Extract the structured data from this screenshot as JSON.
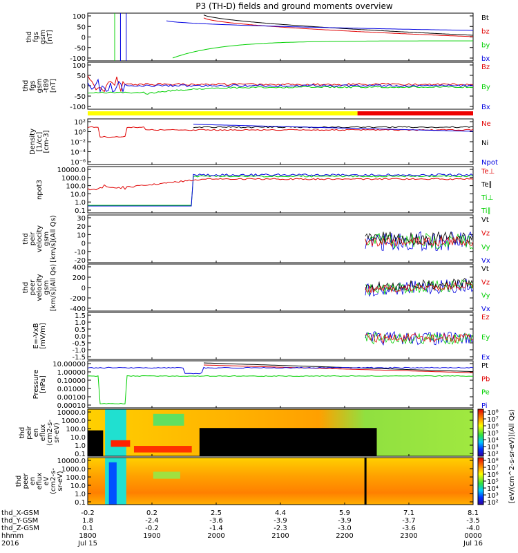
{
  "title": "P3 (TH-D) fields and ground moments overview",
  "colors": {
    "black": "#000000",
    "red": "#e00000",
    "green": "#00d000",
    "blue": "#0000e0",
    "yellow": "#ffff00",
    "barred": "#ee0000"
  },
  "chart_data": {
    "type": "line",
    "x_time_labels": [
      "1800",
      "1900",
      "2000",
      "2100",
      "2200",
      "2300",
      "0000"
    ],
    "x_dates": [
      "Jul 15",
      "",
      "",
      "",
      "",
      "",
      "Jul 16"
    ],
    "x_year": "2016",
    "x_rows": [
      {
        "label": "thd_X-GSM",
        "values": [
          "-0.2",
          "0.2",
          "2.5",
          "4.4",
          "5.9",
          "7.1",
          "8.1"
        ]
      },
      {
        "label": "thd_Y-GSM",
        "values": [
          "1.8",
          "-2.4",
          "-3.6",
          "-3.9",
          "-3.9",
          "-3.7",
          "-3.5"
        ]
      },
      {
        "label": "thd_Z-GSM",
        "values": [
          "0.1",
          "-0.2",
          "-1.4",
          "-2.3",
          "-3.0",
          "-3.6",
          "-4.0"
        ]
      },
      {
        "label": "hhmm",
        "values": [
          "1800",
          "1900",
          "2000",
          "2100",
          "2200",
          "2300",
          "0000"
        ]
      },
      {
        "label": "2016",
        "values": [
          "Jul 15",
          "",
          "",
          "",
          "",
          "",
          "Jul 16"
        ]
      }
    ],
    "panels": [
      {
        "id": "fgs",
        "ylabel": [
          "thd",
          "fgs",
          "gsm",
          "[nT]"
        ],
        "yticks": [
          "100",
          "50",
          "0",
          "-50",
          "-100"
        ],
        "legend": [
          {
            "name": "Bt",
            "color": "black"
          },
          {
            "name": "bz",
            "color": "red"
          },
          {
            "name": "by",
            "color": "green"
          },
          {
            "name": "bx",
            "color": "blue"
          }
        ]
      },
      {
        "id": "fgs_dsl",
        "ylabel": [
          "thd",
          "fgs",
          "gsm",
          "-t89",
          "[nT]"
        ],
        "yticks": [
          "100",
          "50",
          "0",
          "-50",
          "-100"
        ],
        "legend": [
          {
            "name": "Bz",
            "color": "red"
          },
          {
            "name": "By",
            "color": "green"
          },
          {
            "name": "Bx",
            "color": "blue"
          }
        ]
      },
      {
        "id": "density",
        "ylabel": [
          "Density",
          "[1/cc]",
          "[cm-3]"
        ],
        "yticks": [
          "10²",
          "10⁰",
          "10⁻²",
          "10⁻⁴",
          "10⁻⁶"
        ],
        "legend": [
          {
            "name": "Ne",
            "color": "red"
          },
          {
            "name": "Ni",
            "color": "black"
          },
          {
            "name": "Npot",
            "color": "blue"
          }
        ]
      },
      {
        "id": "temp",
        "ylabel": [
          "npot3"
        ],
        "yticks": [
          "10000.0",
          "1000.0",
          "100.0",
          "10.0",
          "1.0",
          "0.1"
        ],
        "legend": [
          {
            "name": "Te⊥",
            "color": "red"
          },
          {
            "name": "Te∥",
            "color": "black"
          },
          {
            "name": "Ti⊥",
            "color": "green"
          },
          {
            "name": "Ti∥",
            "color": "green"
          }
        ]
      },
      {
        "id": "vi",
        "ylabel": [
          "thd",
          "peir",
          "velocity",
          "gsm",
          "[km/s](All Qs)"
        ],
        "yticks": [
          "30",
          "20",
          "10",
          "0",
          "-10",
          "-20"
        ],
        "legend": [
          {
            "name": "Vt",
            "color": "black"
          },
          {
            "name": "Vz",
            "color": "red"
          },
          {
            "name": "Vy",
            "color": "green"
          },
          {
            "name": "Vx",
            "color": "blue"
          }
        ]
      },
      {
        "id": "ve",
        "ylabel": [
          "thd",
          "peer",
          "velocity",
          "gsm",
          "[km/s](All Qs)"
        ],
        "yticks": [
          "400",
          "200",
          "0",
          "-200",
          "-400"
        ],
        "legend": [
          {
            "name": "Vt",
            "color": "black"
          },
          {
            "name": "Vz",
            "color": "red"
          },
          {
            "name": "Vy",
            "color": "green"
          },
          {
            "name": "Vx",
            "color": "blue"
          }
        ]
      },
      {
        "id": "efield",
        "ylabel": [
          "E=-VxB",
          "[mV/m]"
        ],
        "yticks": [
          "1.5",
          "1.0",
          "0.5",
          "0.0",
          "-0.5",
          "-1.0",
          "-1.5"
        ],
        "legend": [
          {
            "name": "Ez",
            "color": "red"
          },
          {
            "name": "Ey",
            "color": "green"
          },
          {
            "name": "Ex",
            "color": "blue"
          }
        ]
      },
      {
        "id": "pressure",
        "ylabel": [
          "Pressure",
          "[nPa]"
        ],
        "yticks": [
          "10.00000",
          "1.00000",
          "0.10000",
          "0.01000",
          "0.00100",
          "0.00010"
        ],
        "legend": [
          {
            "name": "Pt",
            "color": "black"
          },
          {
            "name": "Pb",
            "color": "red"
          },
          {
            "name": "Pe",
            "color": "green"
          },
          {
            "name": "Pi",
            "color": "blue"
          }
        ]
      },
      {
        "id": "ion_spec",
        "ylabel": [
          "thd",
          "peir",
          "en",
          "eflux",
          "(cm2-s-",
          "sr-eV)"
        ],
        "yticks": [
          "10000.0",
          "1000.0",
          "100.0",
          "10.0",
          "1.0",
          "0.1"
        ]
      },
      {
        "id": "el_spec",
        "ylabel": [
          "thd",
          "peer",
          "en",
          "eflux",
          "eV",
          "(cm2-s-",
          "sr-eV)"
        ],
        "yticks": [
          "10000.0",
          "1000.0",
          "100.0",
          "10.0",
          "1.0",
          "0.1"
        ]
      }
    ],
    "colorbar_ticks": [
      "10⁸",
      "10⁷",
      "10⁶",
      "10⁵",
      "10⁴",
      "10³",
      "10²"
    ],
    "colorbar_label": "[eV/(cm^2-s-sr-eV)](All Qs)"
  }
}
